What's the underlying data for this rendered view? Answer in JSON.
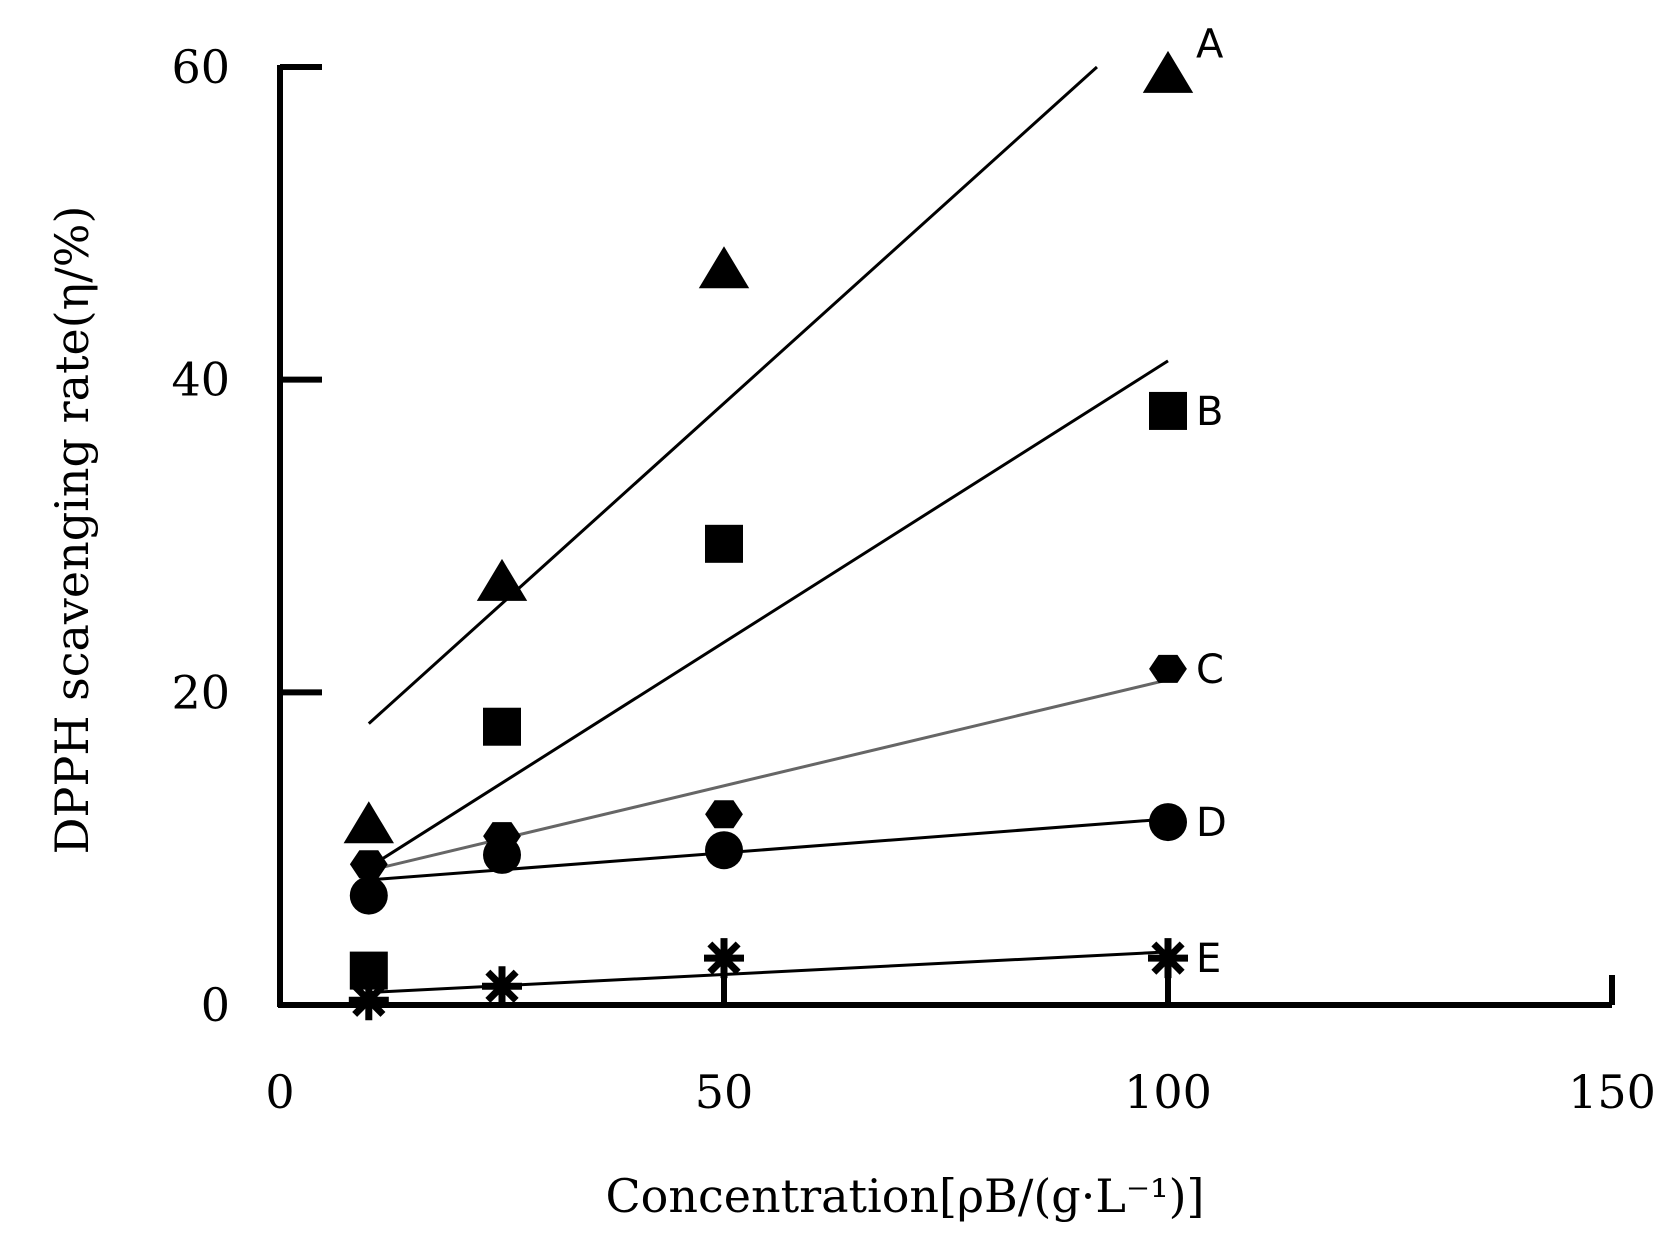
{
  "chart_data": {
    "type": "scatter",
    "xlabel": "Concentration[ρB/(g·L⁻¹)]",
    "ylabel": "DPPH scavenging rate(η/%)",
    "xlim": [
      0,
      150
    ],
    "ylim": [
      0,
      60
    ],
    "xticks": [
      "0",
      "50",
      "100",
      "150"
    ],
    "yticks": [
      "0",
      "20",
      "40",
      "60"
    ],
    "grid": false,
    "legend": "inline-right",
    "series": [
      {
        "name": "A",
        "marker": "triangle",
        "color": "#000000",
        "points": [
          [
            10,
            11.5
          ],
          [
            25,
            27
          ],
          [
            50,
            47
          ],
          [
            100,
            59.5
          ]
        ],
        "fit": [
          [
            10,
            18
          ],
          [
            92,
            60
          ]
        ]
      },
      {
        "name": "B",
        "marker": "square",
        "color": "#000000",
        "points": [
          [
            10,
            2.2
          ],
          [
            25,
            17.8
          ],
          [
            50,
            29.5
          ],
          [
            100,
            38
          ]
        ],
        "fit": [
          [
            10,
            8.8
          ],
          [
            100,
            41.2
          ]
        ]
      },
      {
        "name": "C",
        "marker": "hexagon",
        "color": "#000000",
        "fitColor": "#666666",
        "points": [
          [
            10,
            9
          ],
          [
            25,
            10.8
          ],
          [
            50,
            12.2
          ],
          [
            100,
            21.5
          ]
        ],
        "fit": [
          [
            10,
            8.6
          ],
          [
            100,
            20.8
          ]
        ]
      },
      {
        "name": "D",
        "marker": "circle",
        "color": "#000000",
        "points": [
          [
            10,
            7
          ],
          [
            25,
            9.6
          ],
          [
            50,
            9.9
          ],
          [
            100,
            11.7
          ]
        ],
        "fit": [
          [
            10,
            8
          ],
          [
            100,
            11.9
          ]
        ]
      },
      {
        "name": "E",
        "marker": "asterisk",
        "color": "#000000",
        "points": [
          [
            10,
            0.3
          ],
          [
            25,
            1.2
          ],
          [
            50,
            3
          ],
          [
            100,
            3
          ]
        ],
        "fit": [
          [
            10,
            0.8
          ],
          [
            100,
            3.4
          ]
        ]
      }
    ]
  }
}
